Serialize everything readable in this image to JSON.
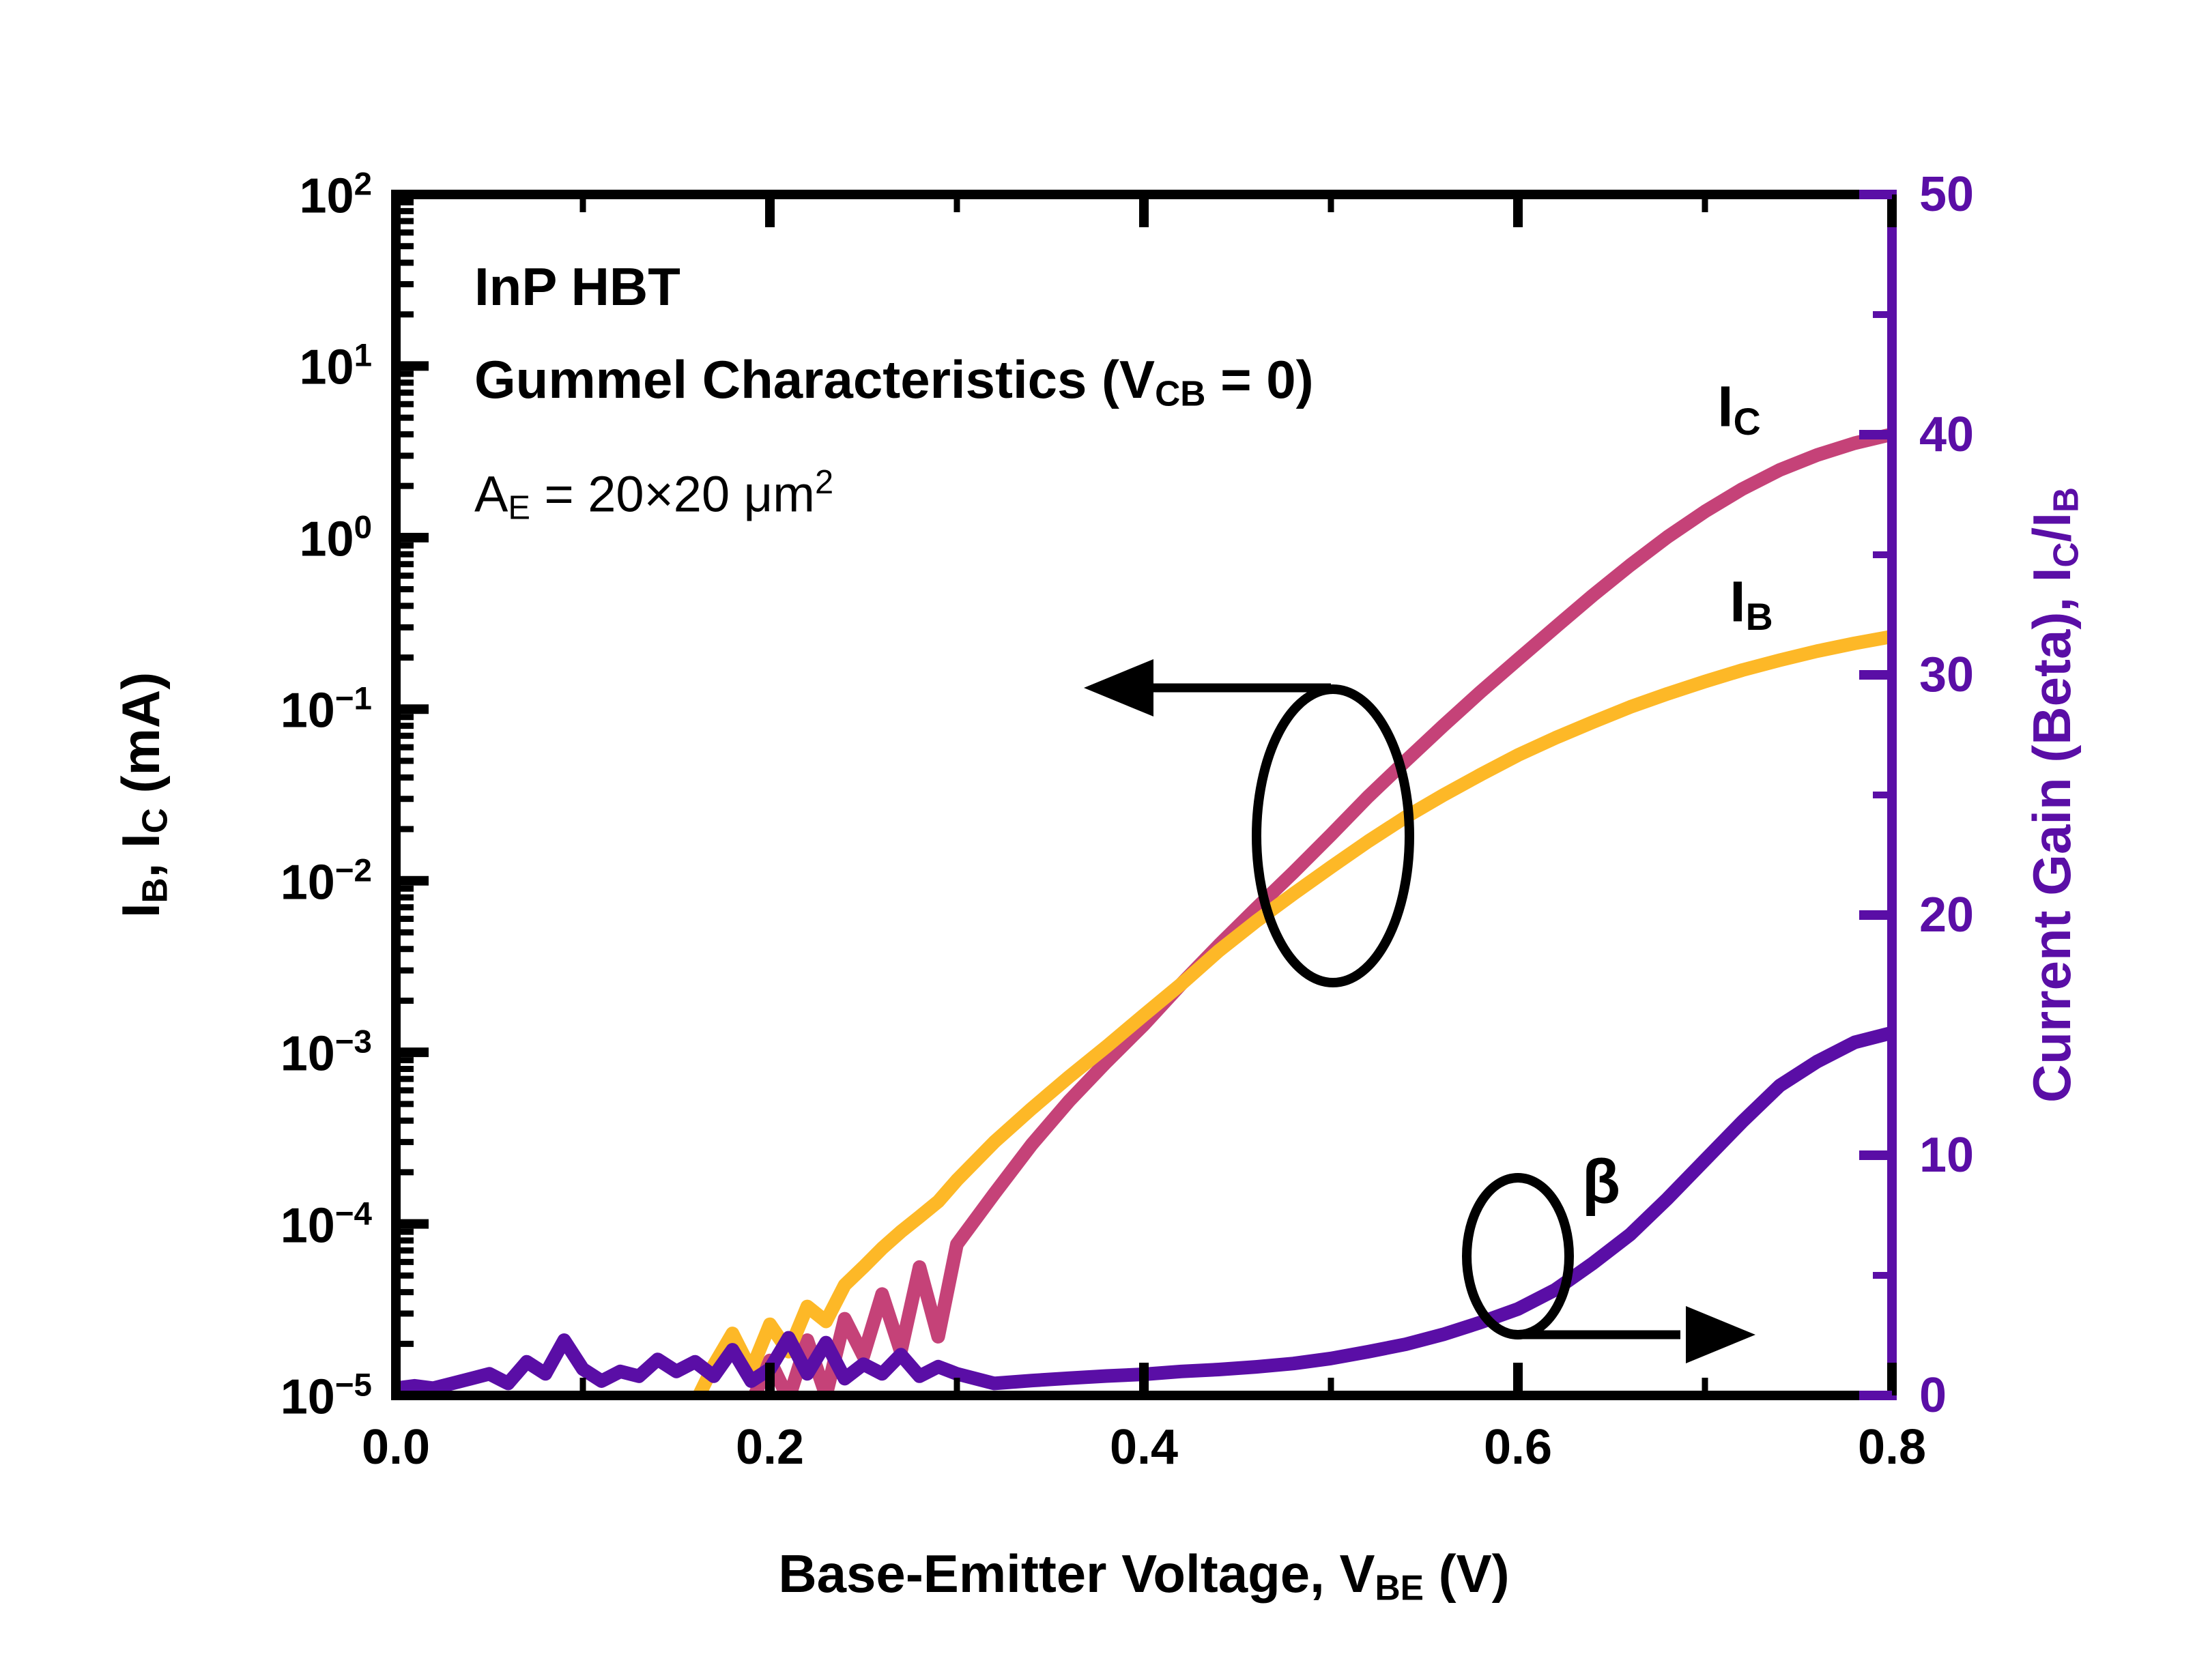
{
  "page": {
    "background": "#ffffff"
  },
  "chart_data": {
    "type": "line",
    "grid": false,
    "legend_position": "none",
    "annotations": {
      "lines": [
        {
          "bold": true,
          "parts": [
            [
              "InP HBT"
            ]
          ]
        },
        {
          "bold": true,
          "parts": [
            [
              "Gummel Characteristics (V"
            ],
            [
              "CB",
              "sub"
            ],
            [
              " = 0)"
            ]
          ]
        },
        {
          "bold": false,
          "parts": [
            [
              "A"
            ],
            [
              "E",
              "sub"
            ],
            [
              " = 20×20 μm"
            ],
            [
              "2",
              "sup"
            ]
          ]
        }
      ]
    },
    "x_axis": {
      "label_parts": [
        [
          "Base-Emitter Voltage, V"
        ],
        [
          "BE",
          "sub"
        ],
        [
          " (V)"
        ]
      ],
      "min": 0.0,
      "max": 0.8,
      "major_ticks": [
        0.0,
        0.2,
        0.4,
        0.6,
        0.8
      ],
      "tick_labels": [
        "0.0",
        "0.2",
        "0.4",
        "0.6",
        "0.8"
      ],
      "minor_step": 0.1
    },
    "y_left_axis": {
      "label_parts": [
        [
          "I"
        ],
        [
          "B",
          "sub"
        ],
        [
          ", I"
        ],
        [
          "C",
          "sub"
        ],
        [
          " (mA)"
        ]
      ],
      "scale": "log",
      "min": 1e-05,
      "max": 100,
      "tick_exponents": [
        2,
        1,
        0,
        -1,
        -2,
        -3,
        -4,
        -5
      ],
      "tick_label_parts": [
        [
          [
            "10"
          ],
          [
            "2",
            "sup"
          ]
        ],
        [
          [
            "10"
          ],
          [
            "1",
            "sup"
          ]
        ],
        [
          [
            "10"
          ],
          [
            "0",
            "sup"
          ]
        ],
        [
          [
            "10"
          ],
          [
            "−1",
            "sup"
          ]
        ],
        [
          [
            "10"
          ],
          [
            "−2",
            "sup"
          ]
        ],
        [
          [
            "10"
          ],
          [
            "−3",
            "sup"
          ]
        ],
        [
          [
            "10"
          ],
          [
            "−4",
            "sup"
          ]
        ],
        [
          [
            "10"
          ],
          [
            "−5",
            "sup"
          ]
        ]
      ]
    },
    "y_right_axis": {
      "label_parts": [
        [
          "Current Gain (Beta), I"
        ],
        [
          "C",
          "sub"
        ],
        [
          "/I"
        ],
        [
          "B",
          "sub"
        ]
      ],
      "scale": "linear",
      "min": 0,
      "max": 50,
      "major_ticks": [
        0,
        10,
        20,
        30,
        40,
        50
      ],
      "tick_labels": [
        "0",
        "10",
        "20",
        "30",
        "40",
        "50"
      ],
      "minor_step": 5,
      "color": "#5A0EA6"
    },
    "x": [
      0.0,
      0.01,
      0.02,
      0.03,
      0.04,
      0.05,
      0.06,
      0.07,
      0.08,
      0.09,
      0.1,
      0.11,
      0.12,
      0.13,
      0.14,
      0.15,
      0.16,
      0.17,
      0.18,
      0.19,
      0.2,
      0.21,
      0.22,
      0.23,
      0.24,
      0.25,
      0.26,
      0.27,
      0.28,
      0.29,
      0.3,
      0.32,
      0.34,
      0.36,
      0.38,
      0.4,
      0.42,
      0.44,
      0.46,
      0.48,
      0.5,
      0.52,
      0.54,
      0.56,
      0.58,
      0.6,
      0.62,
      0.64,
      0.66,
      0.68,
      0.7,
      0.72,
      0.74,
      0.76,
      0.78,
      0.8
    ],
    "series": [
      {
        "id": "IC",
        "label_parts": [
          [
            "I"
          ],
          [
            "C",
            "sub"
          ]
        ],
        "color": "#C54278",
        "axis": "left",
        "unit": "mA",
        "values": [
          9e-06,
          9e-06,
          9e-06,
          9e-06,
          9e-06,
          9e-06,
          9e-06,
          9e-06,
          9e-06,
          9e-06,
          9e-06,
          9e-06,
          9e-06,
          9e-06,
          9e-06,
          9e-06,
          9e-06,
          9e-06,
          9e-06,
          9e-06,
          1.6e-05,
          9.5e-06,
          2.1e-05,
          1e-05,
          2.8e-05,
          1.7e-05,
          3.9e-05,
          1.8e-05,
          5.6e-05,
          2.2e-05,
          7.6e-05,
          0.00015,
          0.00029,
          0.00052,
          0.00088,
          0.00145,
          0.0025,
          0.0042,
          0.0069,
          0.0112,
          0.0185,
          0.031,
          0.05,
          0.08,
          0.126,
          0.195,
          0.3,
          0.46,
          0.69,
          1.01,
          1.42,
          1.92,
          2.48,
          3.03,
          3.55,
          4.0
        ]
      },
      {
        "id": "IB",
        "label_parts": [
          [
            "I"
          ],
          [
            "B",
            "sub"
          ]
        ],
        "color": "#FDB827",
        "axis": "left",
        "unit": "mA",
        "values": [
          9e-06,
          9e-06,
          9e-06,
          9e-06,
          9e-06,
          9e-06,
          9e-06,
          9e-06,
          9e-06,
          9e-06,
          9e-06,
          9e-06,
          9e-06,
          9e-06,
          9e-06,
          9e-06,
          9e-06,
          1.5e-05,
          2.3e-05,
          1.4e-05,
          2.6e-05,
          1.8e-05,
          3.3e-05,
          2.7e-05,
          4.4e-05,
          5.6e-05,
          7.2e-05,
          9e-05,
          0.00011,
          0.000135,
          0.00018,
          0.0003,
          0.00047,
          0.00072,
          0.00108,
          0.00165,
          0.0025,
          0.0039,
          0.0058,
          0.0084,
          0.012,
          0.017,
          0.0235,
          0.0315,
          0.0415,
          0.054,
          0.068,
          0.084,
          0.103,
          0.123,
          0.145,
          0.169,
          0.193,
          0.218,
          0.242,
          0.265
        ]
      },
      {
        "id": "BETA",
        "label_parts": [
          [
            "β"
          ]
        ],
        "color": "#5A0EA6",
        "axis": "right",
        "unit": "",
        "values": [
          0.3,
          0.4,
          0.3,
          0.5,
          0.7,
          0.9,
          0.5,
          1.4,
          0.9,
          2.3,
          1.1,
          0.6,
          1.0,
          0.8,
          1.5,
          1.0,
          1.4,
          0.8,
          1.9,
          0.6,
          1.1,
          2.4,
          0.9,
          2.2,
          0.7,
          1.3,
          0.9,
          1.7,
          0.8,
          1.2,
          0.9,
          0.5,
          0.62,
          0.72,
          0.81,
          0.88,
          1.0,
          1.08,
          1.19,
          1.33,
          1.54,
          1.82,
          2.13,
          2.54,
          3.04,
          3.6,
          4.4,
          5.5,
          6.7,
          8.2,
          9.8,
          11.4,
          12.9,
          13.9,
          14.7,
          15.1
        ]
      }
    ],
    "markers": [
      {
        "id": "ic-ib-group",
        "shape": "ellipse",
        "arrow": "left"
      },
      {
        "id": "beta-group",
        "shape": "ellipse",
        "arrow": "right"
      }
    ]
  }
}
